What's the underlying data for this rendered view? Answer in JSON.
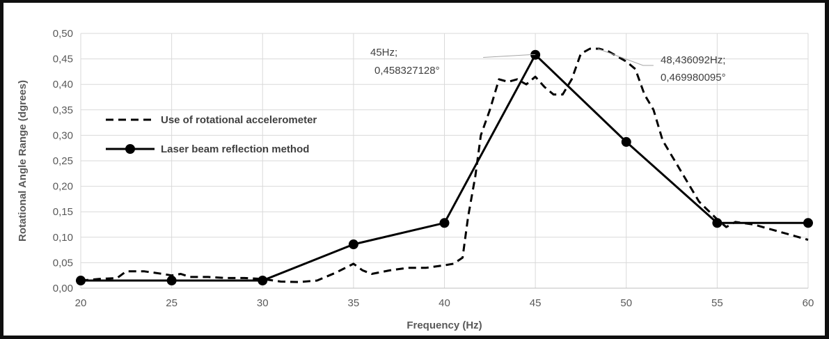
{
  "chart_data": {
    "type": "line",
    "title": "",
    "xlabel": "Frequency (Hz)",
    "ylabel": "Rotational Angle Range (dgrees)",
    "xlim": [
      20,
      60
    ],
    "ylim": [
      0,
      0.5
    ],
    "x_ticks": [
      20,
      25,
      30,
      35,
      40,
      45,
      50,
      55,
      60
    ],
    "x_tick_labels": [
      "20",
      "25",
      "30",
      "35",
      "40",
      "45",
      "50",
      "55",
      "60"
    ],
    "y_ticks": [
      0,
      0.05,
      0.1,
      0.15,
      0.2,
      0.25,
      0.3,
      0.35,
      0.4,
      0.45,
      0.5
    ],
    "y_tick_labels": [
      "0,00",
      "0,05",
      "0,10",
      "0,15",
      "0,20",
      "0,25",
      "0,30",
      "0,35",
      "0,40",
      "0,45",
      "0,50"
    ],
    "grid": true,
    "legend_position": "left",
    "series": [
      {
        "name": "Use of rotational accelerometer",
        "style": "dashed",
        "color": "#000000",
        "x": [
          20,
          21,
          22,
          22.5,
          23.5,
          24.5,
          25,
          25.5,
          26,
          27,
          28,
          29,
          30,
          31,
          32,
          33,
          34,
          35,
          35.5,
          36,
          37,
          38,
          39,
          40,
          40.5,
          41,
          41.3,
          41.7,
          42,
          42.5,
          43,
          43.5,
          44,
          44.5,
          45,
          45.5,
          46,
          46.5,
          47,
          47.5,
          48,
          48.5,
          49,
          50,
          50.5,
          51,
          51.5,
          52,
          53,
          54,
          55,
          55.5,
          56,
          57,
          58,
          59,
          60
        ],
        "y": [
          0.015,
          0.018,
          0.02,
          0.033,
          0.033,
          0.028,
          0.025,
          0.028,
          0.022,
          0.022,
          0.02,
          0.02,
          0.018,
          0.013,
          0.012,
          0.015,
          0.03,
          0.048,
          0.035,
          0.028,
          0.035,
          0.04,
          0.04,
          0.045,
          0.048,
          0.06,
          0.14,
          0.22,
          0.3,
          0.35,
          0.41,
          0.405,
          0.41,
          0.4,
          0.415,
          0.395,
          0.38,
          0.38,
          0.41,
          0.46,
          0.47,
          0.47,
          0.465,
          0.445,
          0.43,
          0.38,
          0.35,
          0.29,
          0.23,
          0.17,
          0.135,
          0.12,
          0.13,
          0.125,
          0.115,
          0.105,
          0.095
        ]
      },
      {
        "name": "Laser beam reflection method",
        "style": "solid-markers",
        "color": "#000000",
        "x": [
          20,
          25,
          30,
          35,
          40,
          45,
          50,
          55,
          60
        ],
        "y": [
          0.015,
          0.015,
          0.015,
          0.086,
          0.128,
          0.458,
          0.287,
          0.128,
          0.128
        ]
      }
    ],
    "annotations": [
      {
        "line1": "45Hz;",
        "line2": "0,458327128°",
        "x": 45,
        "y": 0.458327128
      },
      {
        "line1": "48,436092Hz;",
        "line2": "0,469980095°",
        "x": 48.436092,
        "y": 0.469980095
      }
    ]
  }
}
